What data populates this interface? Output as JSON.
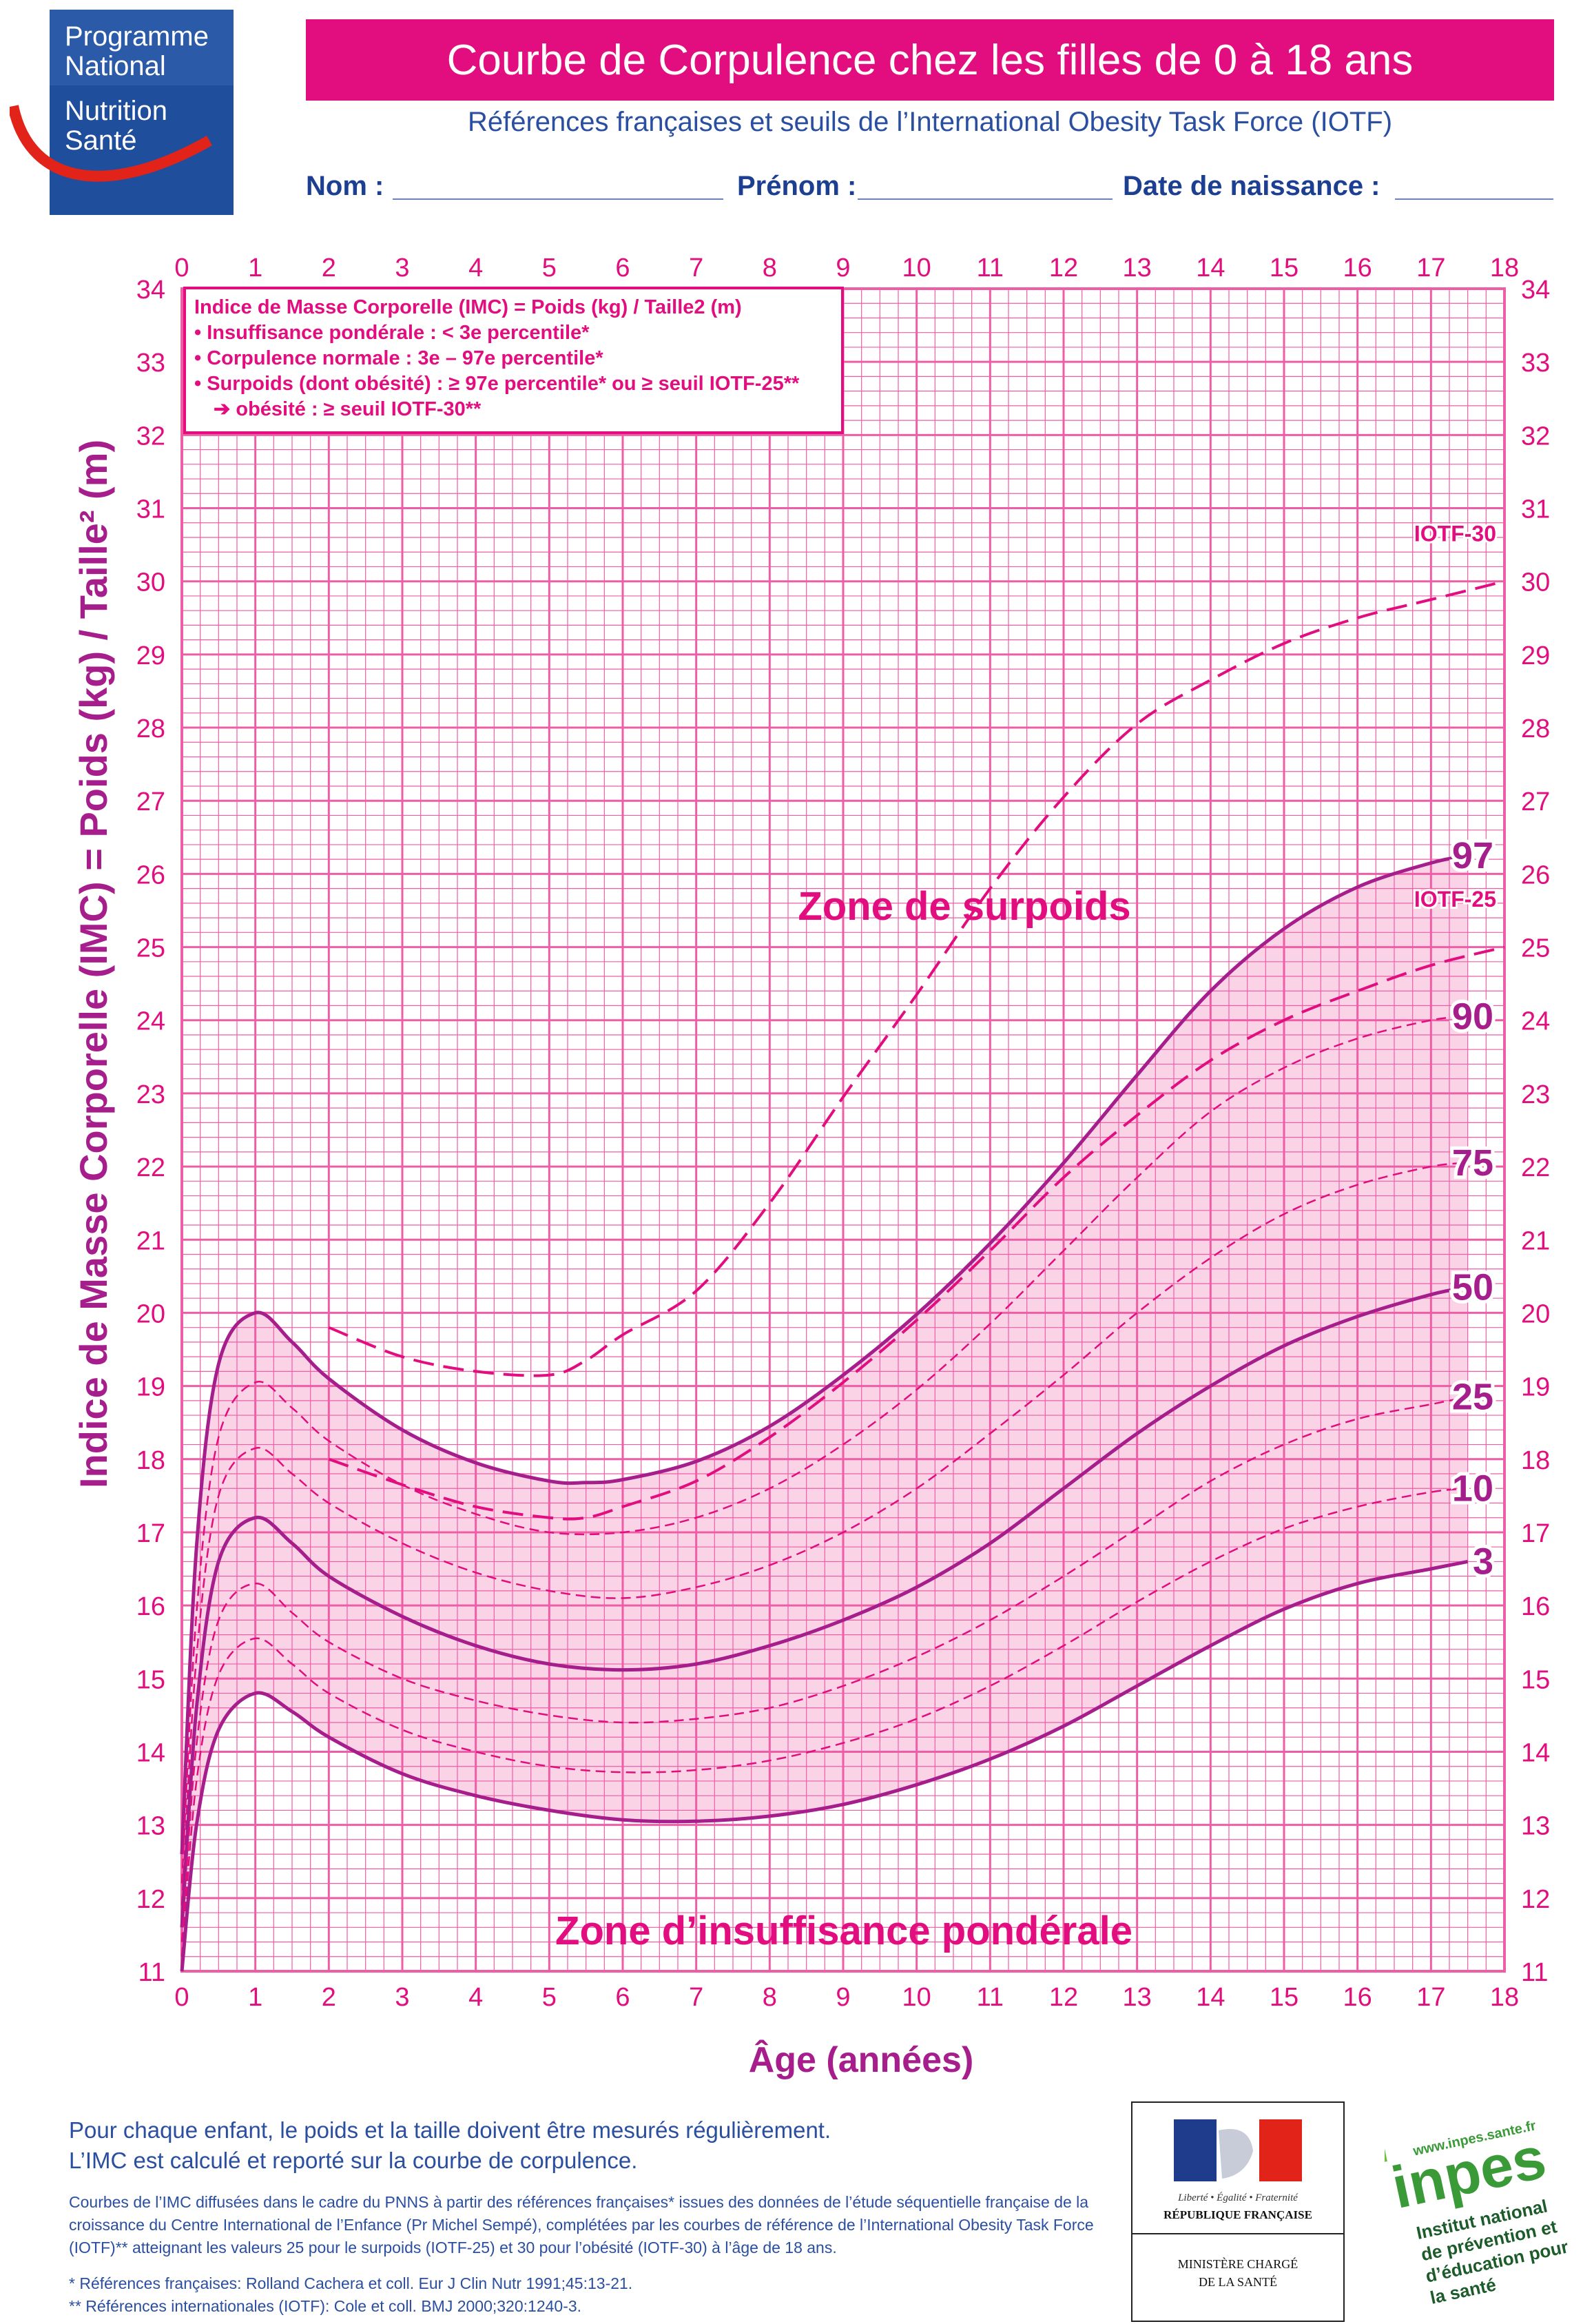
{
  "logo": {
    "line1": "Programme",
    "line2": "National",
    "line3": "Nutrition",
    "line4": "Santé"
  },
  "header": {
    "title": "Courbe de Corpulence chez les filles de 0 à 18 ans",
    "subtitle": "Références françaises et seuils de l’International Obesity Task Force (IOTF)",
    "nom_label": "Nom :",
    "prenom_label": "Prénom :",
    "naissance_label": "Date de naissance :"
  },
  "legend_box": {
    "line1": "Indice de Masse Corporelle (IMC) = Poids (kg) / Taille2 (m)",
    "line2": "• Insuffisance pondérale : < 3e percentile*",
    "line3": "• Corpulence normale : 3e – 97e percentile*",
    "line4": "• Surpoids (dont obésité) : ≥ 97e percentile* ou ≥ seuil IOTF-25**",
    "line5": "➔ obésité : ≥ seuil IOTF-30**"
  },
  "footer": {
    "note_line1": "Pour chaque enfant, le poids et la taille doivent être mesurés régulièrement.",
    "note_line2": "L’IMC est calculé et reporté sur la courbe de corpulence.",
    "credits": "Courbes de l’IMC diffusées dans le cadre du PNNS à partir des références françaises* issues des données de l’étude séquentielle française de la croissance du Centre International de l’Enfance (Pr Michel Sempé), complétées par les courbes de référence de l’International Obesity Task Force (IOTF)** atteignant les valeurs 25 pour le surpoids (IOTF-25) et 30 pour l’obésité (IOTF-30) à l’âge de 18 ans.",
    "ref1": "* Références françaises: Rolland Cachera et coll. Eur J Clin Nutr 1991;45:13-21.",
    "ref2": "** Références internationales (IOTF): Cole et coll. BMJ 2000;320:1240-3."
  },
  "ministry": {
    "motto": "Liberté • Égalité • Fraternité",
    "republic": "RÉPUBLIQUE FRANÇAISE",
    "line1": "MINISTÈRE CHARGÉ",
    "line2": "DE LA SANTÉ"
  },
  "inpes": {
    "url": "www.inpes.sante.fr",
    "name": "inpes",
    "tag1": "Institut national",
    "tag2": "de prévention et",
    "tag3": "d’éducation pour",
    "tag4": "la santé"
  },
  "colors": {
    "magenta": "#e20d7e",
    "purple": "#a61e8b",
    "grid": "#ee5ea6",
    "band": "#fbd3e6",
    "blue": "#2a4ea0"
  },
  "chart_data": {
    "type": "line",
    "xlabel": "Âge (années)",
    "ylabel": "Indice de Masse Corporelle (IMC) = Poids (kg) / Taille² (m)",
    "xlim": [
      0,
      18
    ],
    "ylim": [
      11,
      34
    ],
    "grid": true,
    "annotations": [
      "Zone de surpoids",
      "Zone d’insuffisance pondérale"
    ],
    "band": "3 – 97",
    "series": [
      {
        "name": "97",
        "style": "solid",
        "points": [
          [
            0,
            12.6
          ],
          [
            0.2,
            16.8
          ],
          [
            0.5,
            19.3
          ],
          [
            1,
            20
          ],
          [
            1.5,
            19.6
          ],
          [
            2,
            19.1
          ],
          [
            3,
            18.4
          ],
          [
            4,
            17.95
          ],
          [
            5,
            17.7
          ],
          [
            5.5,
            17.68
          ],
          [
            6,
            17.72
          ],
          [
            7,
            17.97
          ],
          [
            8,
            18.45
          ],
          [
            9,
            19.15
          ],
          [
            10,
            19.98
          ],
          [
            11,
            20.95
          ],
          [
            12,
            22.05
          ],
          [
            13,
            23.25
          ],
          [
            14,
            24.4
          ],
          [
            15,
            25.25
          ],
          [
            16,
            25.82
          ],
          [
            17,
            26.15
          ],
          [
            17.5,
            26.25
          ]
        ]
      },
      {
        "name": "90",
        "style": "dashed-thin",
        "points": [
          [
            0,
            12.2
          ],
          [
            0.2,
            15.9
          ],
          [
            0.5,
            18.3
          ],
          [
            1,
            19.05
          ],
          [
            1.5,
            18.7
          ],
          [
            2,
            18.25
          ],
          [
            3,
            17.65
          ],
          [
            4,
            17.25
          ],
          [
            5,
            17
          ],
          [
            6,
            17
          ],
          [
            7,
            17.2
          ],
          [
            8,
            17.6
          ],
          [
            9,
            18.2
          ],
          [
            10,
            18.95
          ],
          [
            11,
            19.85
          ],
          [
            12,
            20.85
          ],
          [
            13,
            21.85
          ],
          [
            14,
            22.75
          ],
          [
            15,
            23.35
          ],
          [
            16,
            23.75
          ],
          [
            17,
            24
          ],
          [
            17.5,
            24.05
          ]
        ]
      },
      {
        "name": "75",
        "style": "dashed-thin",
        "points": [
          [
            0,
            11.9
          ],
          [
            0.2,
            15.3
          ],
          [
            0.5,
            17.5
          ],
          [
            1,
            18.15
          ],
          [
            1.5,
            17.8
          ],
          [
            2,
            17.4
          ],
          [
            3,
            16.85
          ],
          [
            4,
            16.45
          ],
          [
            5,
            16.2
          ],
          [
            6,
            16.1
          ],
          [
            7,
            16.25
          ],
          [
            8,
            16.55
          ],
          [
            9,
            17
          ],
          [
            10,
            17.6
          ],
          [
            11,
            18.35
          ],
          [
            12,
            19.15
          ],
          [
            13,
            20
          ],
          [
            14,
            20.75
          ],
          [
            15,
            21.35
          ],
          [
            16,
            21.75
          ],
          [
            17,
            22
          ],
          [
            17.5,
            22.05
          ]
        ]
      },
      {
        "name": "50",
        "style": "solid",
        "points": [
          [
            0,
            11.6
          ],
          [
            0.2,
            14.6
          ],
          [
            0.5,
            16.6
          ],
          [
            1,
            17.2
          ],
          [
            1.5,
            16.85
          ],
          [
            2,
            16.4
          ],
          [
            3,
            15.85
          ],
          [
            4,
            15.45
          ],
          [
            5,
            15.2
          ],
          [
            6,
            15.12
          ],
          [
            7,
            15.2
          ],
          [
            8,
            15.45
          ],
          [
            9,
            15.8
          ],
          [
            10,
            16.25
          ],
          [
            11,
            16.85
          ],
          [
            12,
            17.6
          ],
          [
            13,
            18.35
          ],
          [
            14,
            19
          ],
          [
            15,
            19.55
          ],
          [
            16,
            19.95
          ],
          [
            17,
            20.25
          ],
          [
            17.5,
            20.35
          ]
        ]
      },
      {
        "name": "25",
        "style": "dashed-thin",
        "points": [
          [
            0,
            11.4
          ],
          [
            0.2,
            14.1
          ],
          [
            0.5,
            15.8
          ],
          [
            1,
            16.3
          ],
          [
            1.5,
            15.9
          ],
          [
            2,
            15.5
          ],
          [
            3,
            15
          ],
          [
            4,
            14.7
          ],
          [
            5,
            14.5
          ],
          [
            6,
            14.4
          ],
          [
            7,
            14.45
          ],
          [
            8,
            14.6
          ],
          [
            9,
            14.9
          ],
          [
            10,
            15.3
          ],
          [
            11,
            15.8
          ],
          [
            12,
            16.4
          ],
          [
            13,
            17.05
          ],
          [
            14,
            17.7
          ],
          [
            15,
            18.2
          ],
          [
            16,
            18.55
          ],
          [
            17,
            18.75
          ],
          [
            17.5,
            18.85
          ]
        ]
      },
      {
        "name": "10",
        "style": "dashed-thin",
        "points": [
          [
            0,
            11.2
          ],
          [
            0.2,
            13.6
          ],
          [
            0.5,
            15.05
          ],
          [
            1,
            15.55
          ],
          [
            1.5,
            15.2
          ],
          [
            2,
            14.8
          ],
          [
            3,
            14.3
          ],
          [
            4,
            14
          ],
          [
            5,
            13.8
          ],
          [
            6,
            13.72
          ],
          [
            7,
            13.75
          ],
          [
            8,
            13.88
          ],
          [
            9,
            14.12
          ],
          [
            10,
            14.45
          ],
          [
            11,
            14.9
          ],
          [
            12,
            15.45
          ],
          [
            13,
            16.05
          ],
          [
            14,
            16.6
          ],
          [
            15,
            17.05
          ],
          [
            16,
            17.35
          ],
          [
            17,
            17.55
          ],
          [
            17.5,
            17.6
          ]
        ]
      },
      {
        "name": "3",
        "style": "solid",
        "points": [
          [
            0,
            11
          ],
          [
            0.2,
            13
          ],
          [
            0.5,
            14.3
          ],
          [
            1,
            14.8
          ],
          [
            1.5,
            14.55
          ],
          [
            2,
            14.2
          ],
          [
            3,
            13.7
          ],
          [
            4,
            13.4
          ],
          [
            5,
            13.2
          ],
          [
            6,
            13.07
          ],
          [
            7,
            13.05
          ],
          [
            8,
            13.12
          ],
          [
            9,
            13.28
          ],
          [
            10,
            13.55
          ],
          [
            11,
            13.9
          ],
          [
            12,
            14.35
          ],
          [
            13,
            14.9
          ],
          [
            14,
            15.45
          ],
          [
            15,
            15.95
          ],
          [
            16,
            16.3
          ],
          [
            17,
            16.5
          ],
          [
            17.5,
            16.6
          ]
        ]
      },
      {
        "name": "IOTF-30",
        "style": "dashed-thick",
        "points": [
          [
            2,
            19.8
          ],
          [
            3,
            19.4
          ],
          [
            4,
            19.2
          ],
          [
            5,
            19.15
          ],
          [
            5.5,
            19.35
          ],
          [
            6,
            19.7
          ],
          [
            7,
            20.3
          ],
          [
            8,
            21.5
          ],
          [
            9,
            22.95
          ],
          [
            10,
            24.35
          ],
          [
            11,
            25.8
          ],
          [
            12,
            27.05
          ],
          [
            13,
            28.05
          ],
          [
            14,
            28.65
          ],
          [
            15,
            29.15
          ],
          [
            16,
            29.5
          ],
          [
            17,
            29.75
          ],
          [
            18,
            30
          ]
        ]
      },
      {
        "name": "IOTF-25",
        "style": "dashed-thick",
        "points": [
          [
            2,
            18
          ],
          [
            3,
            17.65
          ],
          [
            4,
            17.35
          ],
          [
            5,
            17.2
          ],
          [
            5.5,
            17.2
          ],
          [
            6,
            17.35
          ],
          [
            7,
            17.7
          ],
          [
            8,
            18.3
          ],
          [
            9,
            19.05
          ],
          [
            10,
            19.9
          ],
          [
            11,
            20.85
          ],
          [
            12,
            21.85
          ],
          [
            13,
            22.7
          ],
          [
            14,
            23.45
          ],
          [
            15,
            24
          ],
          [
            16,
            24.4
          ],
          [
            17,
            24.75
          ],
          [
            18,
            25
          ]
        ]
      }
    ]
  }
}
